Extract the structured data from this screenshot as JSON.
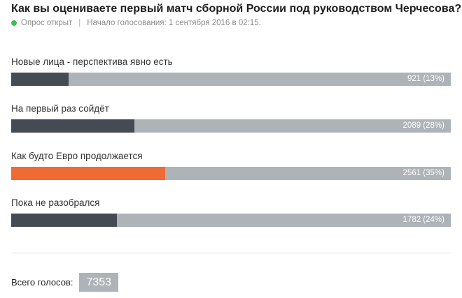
{
  "poll": {
    "title": "Как вы оцениваете первый матч сборной России под руководством Черчесова?",
    "status": "Опрос открыт",
    "separator": "|",
    "started": "Начало голосования: 1 сентября 2016 в 02:15."
  },
  "options": [
    {
      "label": "Новые лица - перспектива явно есть",
      "value_text": "921 (13%)",
      "votes": 921,
      "percent": 13
    },
    {
      "label": "На первый раз сойдёт",
      "value_text": "2089 (28%)",
      "votes": 2089,
      "percent": 28
    },
    {
      "label": "Как будто Евро продолжается",
      "value_text": "2561 (35%)",
      "votes": 2561,
      "percent": 35,
      "highlighted": true
    },
    {
      "label": "Пока не разобрался",
      "value_text": "1782 (24%)",
      "votes": 1782,
      "percent": 24
    }
  ],
  "total": {
    "label": "Всего голосов:",
    "count": "7353"
  },
  "colors": {
    "fill": "#454b52",
    "highlight_fill": "#f06a33",
    "track": "#aeb3b8",
    "status_dot": "#3fbf55"
  }
}
